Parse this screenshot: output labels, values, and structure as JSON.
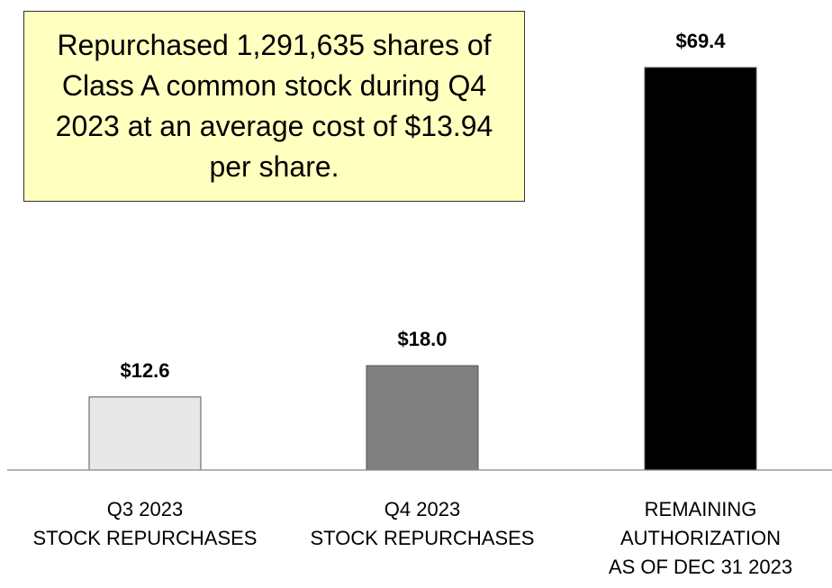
{
  "chart_data": {
    "type": "bar",
    "annotation": "Repurchased 1,291,635 shares of Class A common stock during Q4 2023 at an average cost of $13.94 per share.",
    "categories": [
      "Q3 2023\nSTOCK REPURCHASES",
      "Q4 2023\nSTOCK REPURCHASES",
      "REMAINING\nAUTHORIZATION\nAS OF DEC 31 2023"
    ],
    "values": [
      12.6,
      18.0,
      69.4
    ],
    "value_labels": [
      "$12.6",
      "$18.0",
      "$69.4"
    ],
    "colors": [
      "#e8e8e8",
      "#808080",
      "#000000"
    ]
  }
}
